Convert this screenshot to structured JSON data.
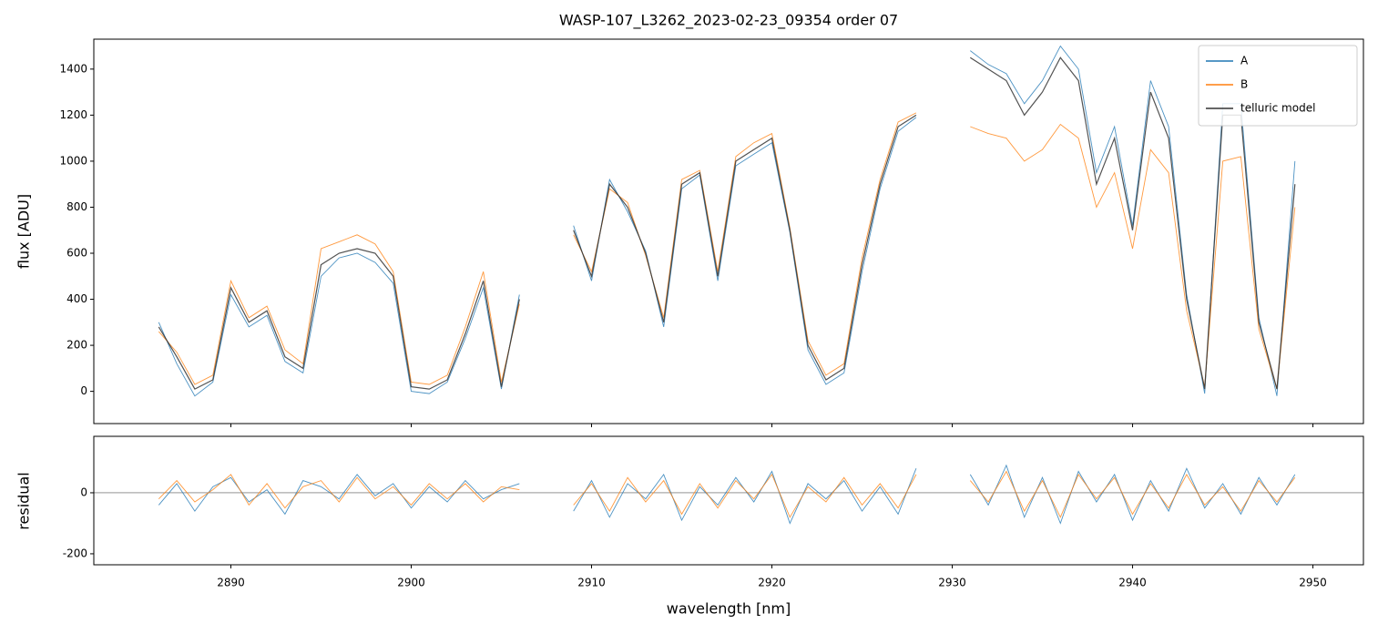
{
  "chart_data": [
    {
      "type": "line",
      "title": "WASP-107_L3262_2023-02-23_09354  order 07",
      "ylabel": "flux [ADU]",
      "x": [
        2886,
        2887,
        2888,
        2889,
        2890,
        2891,
        2892,
        2893,
        2894,
        2895,
        2896,
        2897,
        2898,
        2899,
        2900,
        2901,
        2902,
        2903,
        2904,
        2905,
        2906,
        2907,
        2908,
        2909,
        2910,
        2911,
        2912,
        2913,
        2914,
        2915,
        2916,
        2917,
        2918,
        2919,
        2920,
        2921,
        2922,
        2923,
        2924,
        2925,
        2926,
        2927,
        2928,
        2929,
        2930,
        2931,
        2932,
        2933,
        2934,
        2935,
        2936,
        2937,
        2938,
        2939,
        2940,
        2941,
        2942,
        2943,
        2944,
        2945,
        2946,
        2947,
        2948,
        2949
      ],
      "series": [
        {
          "name": "A",
          "color": "#1f77b4",
          "values": [
            300,
            120,
            -20,
            40,
            420,
            280,
            330,
            130,
            80,
            500,
            580,
            600,
            560,
            470,
            0,
            -10,
            40,
            230,
            450,
            10,
            420,
            null,
            null,
            720,
            480,
            920,
            780,
            610,
            280,
            880,
            940,
            480,
            980,
            1030,
            1080,
            690,
            180,
            30,
            80,
            520,
            880,
            1130,
            1190,
            null,
            null,
            1480,
            1420,
            1380,
            1250,
            1350,
            1500,
            1400,
            950,
            1150,
            720,
            1350,
            1150,
            420,
            -10,
            1250,
            1250,
            320,
            -20,
            1000
          ]
        },
        {
          "name": "B",
          "color": "#ff7f0e",
          "values": [
            260,
            170,
            30,
            70,
            480,
            320,
            370,
            180,
            120,
            620,
            650,
            680,
            640,
            520,
            40,
            30,
            70,
            280,
            520,
            40,
            380,
            null,
            null,
            680,
            520,
            880,
            820,
            590,
            320,
            920,
            960,
            520,
            1020,
            1080,
            1120,
            710,
            220,
            70,
            120,
            580,
            920,
            1170,
            1210,
            null,
            null,
            1150,
            1120,
            1100,
            1000,
            1050,
            1160,
            1100,
            800,
            950,
            620,
            1050,
            950,
            350,
            20,
            1000,
            1020,
            270,
            10,
            800
          ]
        },
        {
          "name": "telluric model",
          "color": "#333333",
          "values": [
            280,
            150,
            10,
            50,
            450,
            300,
            350,
            150,
            100,
            550,
            600,
            620,
            600,
            500,
            20,
            10,
            50,
            250,
            480,
            20,
            400,
            null,
            null,
            700,
            500,
            900,
            800,
            600,
            300,
            900,
            950,
            500,
            1000,
            1050,
            1100,
            700,
            200,
            50,
            100,
            550,
            900,
            1150,
            1200,
            null,
            null,
            1450,
            1400,
            1350,
            1200,
            1300,
            1450,
            1350,
            900,
            1100,
            700,
            1300,
            1100,
            400,
            10,
            1200,
            1200,
            300,
            10,
            900
          ]
        }
      ],
      "xlim": [
        2882.4,
        2952.8
      ],
      "ylim": [
        -140,
        1530
      ],
      "yticks": [
        0,
        200,
        400,
        600,
        800,
        1000,
        1200,
        1400
      ],
      "legend": "upper right"
    },
    {
      "type": "line",
      "xlabel": "wavelength [nm]",
      "ylabel": "residual",
      "x": [
        2886,
        2887,
        2888,
        2889,
        2890,
        2891,
        2892,
        2893,
        2894,
        2895,
        2896,
        2897,
        2898,
        2899,
        2900,
        2901,
        2902,
        2903,
        2904,
        2905,
        2906,
        2907,
        2908,
        2909,
        2910,
        2911,
        2912,
        2913,
        2914,
        2915,
        2916,
        2917,
        2918,
        2919,
        2920,
        2921,
        2922,
        2923,
        2924,
        2925,
        2926,
        2927,
        2928,
        2929,
        2930,
        2931,
        2932,
        2933,
        2934,
        2935,
        2936,
        2937,
        2938,
        2939,
        2940,
        2941,
        2942,
        2943,
        2944,
        2945,
        2946,
        2947,
        2948,
        2949
      ],
      "series": [
        {
          "name": "A",
          "color": "#1f77b4",
          "values": [
            -40,
            30,
            -60,
            20,
            50,
            -30,
            10,
            -70,
            40,
            20,
            -20,
            60,
            -10,
            30,
            -50,
            20,
            -30,
            40,
            -20,
            10,
            30,
            null,
            null,
            -60,
            40,
            -80,
            30,
            -20,
            60,
            -90,
            20,
            -40,
            50,
            -30,
            70,
            -100,
            30,
            -20,
            40,
            -60,
            20,
            -70,
            80,
            null,
            null,
            60,
            -40,
            90,
            -80,
            50,
            -100,
            70,
            -30,
            60,
            -90,
            40,
            -60,
            80,
            -50,
            30,
            -70,
            50,
            -40,
            60
          ]
        },
        {
          "name": "B",
          "color": "#ff7f0e",
          "values": [
            -20,
            40,
            -30,
            10,
            60,
            -40,
            30,
            -50,
            20,
            40,
            -30,
            50,
            -20,
            20,
            -40,
            30,
            -20,
            30,
            -30,
            20,
            10,
            null,
            null,
            -40,
            30,
            -60,
            50,
            -30,
            40,
            -70,
            30,
            -50,
            40,
            -20,
            60,
            -80,
            20,
            -30,
            50,
            -40,
            30,
            -50,
            60,
            null,
            null,
            40,
            -30,
            70,
            -60,
            40,
            -80,
            60,
            -20,
            50,
            -70,
            30,
            -50,
            60,
            -40,
            20,
            -60,
            40,
            -30,
            50
          ]
        }
      ],
      "hline": 0,
      "xlim": [
        2882.4,
        2952.8
      ],
      "ylim": [
        -236,
        185
      ],
      "yticks": [
        -200,
        0
      ],
      "xticks": [
        2890,
        2900,
        2910,
        2920,
        2930,
        2940,
        2950
      ]
    }
  ]
}
